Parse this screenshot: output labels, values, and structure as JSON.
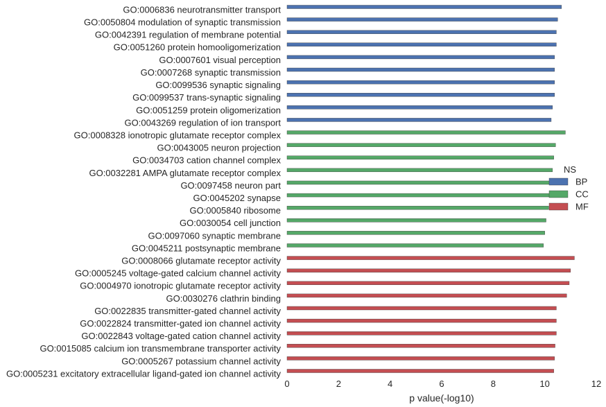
{
  "chart_data": {
    "type": "bar",
    "orientation": "horizontal",
    "xlabel": "p value(-log10)",
    "xlim": [
      0,
      12
    ],
    "xticks": [
      0,
      2,
      4,
      6,
      8,
      10,
      12
    ],
    "grid": false,
    "legend": {
      "title": "NS",
      "placement": "right",
      "entries": [
        {
          "name": "BP",
          "color": "#4c72b0"
        },
        {
          "name": "CC",
          "color": "#55a868"
        },
        {
          "name": "MF",
          "color": "#c44e52"
        }
      ]
    },
    "bars": [
      {
        "label": "GO:0006836 neurotransmitter transport",
        "group": "BP",
        "value": 10.65
      },
      {
        "label": "GO:0050804 modulation of synaptic transmission",
        "group": "BP",
        "value": 10.5
      },
      {
        "label": "GO:0042391 regulation of membrane potential",
        "group": "BP",
        "value": 10.45
      },
      {
        "label": "GO:0051260 protein homooligomerization",
        "group": "BP",
        "value": 10.45
      },
      {
        "label": "GO:0007601 visual perception",
        "group": "BP",
        "value": 10.38
      },
      {
        "label": "GO:0007268 synaptic transmission",
        "group": "BP",
        "value": 10.38
      },
      {
        "label": "GO:0099536 synaptic signaling",
        "group": "BP",
        "value": 10.38
      },
      {
        "label": "GO:0099537 trans-synaptic signaling",
        "group": "BP",
        "value": 10.38
      },
      {
        "label": "GO:0051259 protein oligomerization",
        "group": "BP",
        "value": 10.3
      },
      {
        "label": "GO:0043269 regulation of ion transport",
        "group": "BP",
        "value": 10.25
      },
      {
        "label": "GO:0008328 ionotropic glutamate receptor complex",
        "group": "CC",
        "value": 10.8
      },
      {
        "label": "GO:0043005 neuron projection",
        "group": "CC",
        "value": 10.42
      },
      {
        "label": "GO:0034703 cation channel complex",
        "group": "CC",
        "value": 10.35
      },
      {
        "label": "GO:0032281 AMPA glutamate receptor complex",
        "group": "CC",
        "value": 10.3
      },
      {
        "label": "GO:0097458 neuron part",
        "group": "CC",
        "value": 10.25
      },
      {
        "label": "GO:0045202 synapse",
        "group": "CC",
        "value": 10.2
      },
      {
        "label": "GO:0005840 ribosome",
        "group": "CC",
        "value": 10.15
      },
      {
        "label": "GO:0030054 cell junction",
        "group": "CC",
        "value": 10.05
      },
      {
        "label": "GO:0097060 synaptic membrane",
        "group": "CC",
        "value": 10.0
      },
      {
        "label": "GO:0045211 postsynaptic membrane",
        "group": "CC",
        "value": 9.95
      },
      {
        "label": "GO:0008066 glutamate receptor activity",
        "group": "MF",
        "value": 11.15
      },
      {
        "label": "GO:0005245 voltage-gated calcium channel activity",
        "group": "MF",
        "value": 11.0
      },
      {
        "label": "GO:0004970 ionotropic glutamate receptor activity",
        "group": "MF",
        "value": 10.95
      },
      {
        "label": "GO:0030276 clathrin binding",
        "group": "MF",
        "value": 10.85
      },
      {
        "label": "GO:0022835 transmitter-gated channel activity",
        "group": "MF",
        "value": 10.45
      },
      {
        "label": "GO:0022824 transmitter-gated ion channel activity",
        "group": "MF",
        "value": 10.45
      },
      {
        "label": "GO:0022843 voltage-gated cation channel activity",
        "group": "MF",
        "value": 10.45
      },
      {
        "label": "GO:0015085 calcium ion transmembrane transporter activity",
        "group": "MF",
        "value": 10.4
      },
      {
        "label": "GO:0005267 potassium channel activity",
        "group": "MF",
        "value": 10.38
      },
      {
        "label": "GO:0005231 excitatory extracellular ligand-gated ion channel activity",
        "group": "MF",
        "value": 10.35
      }
    ]
  }
}
